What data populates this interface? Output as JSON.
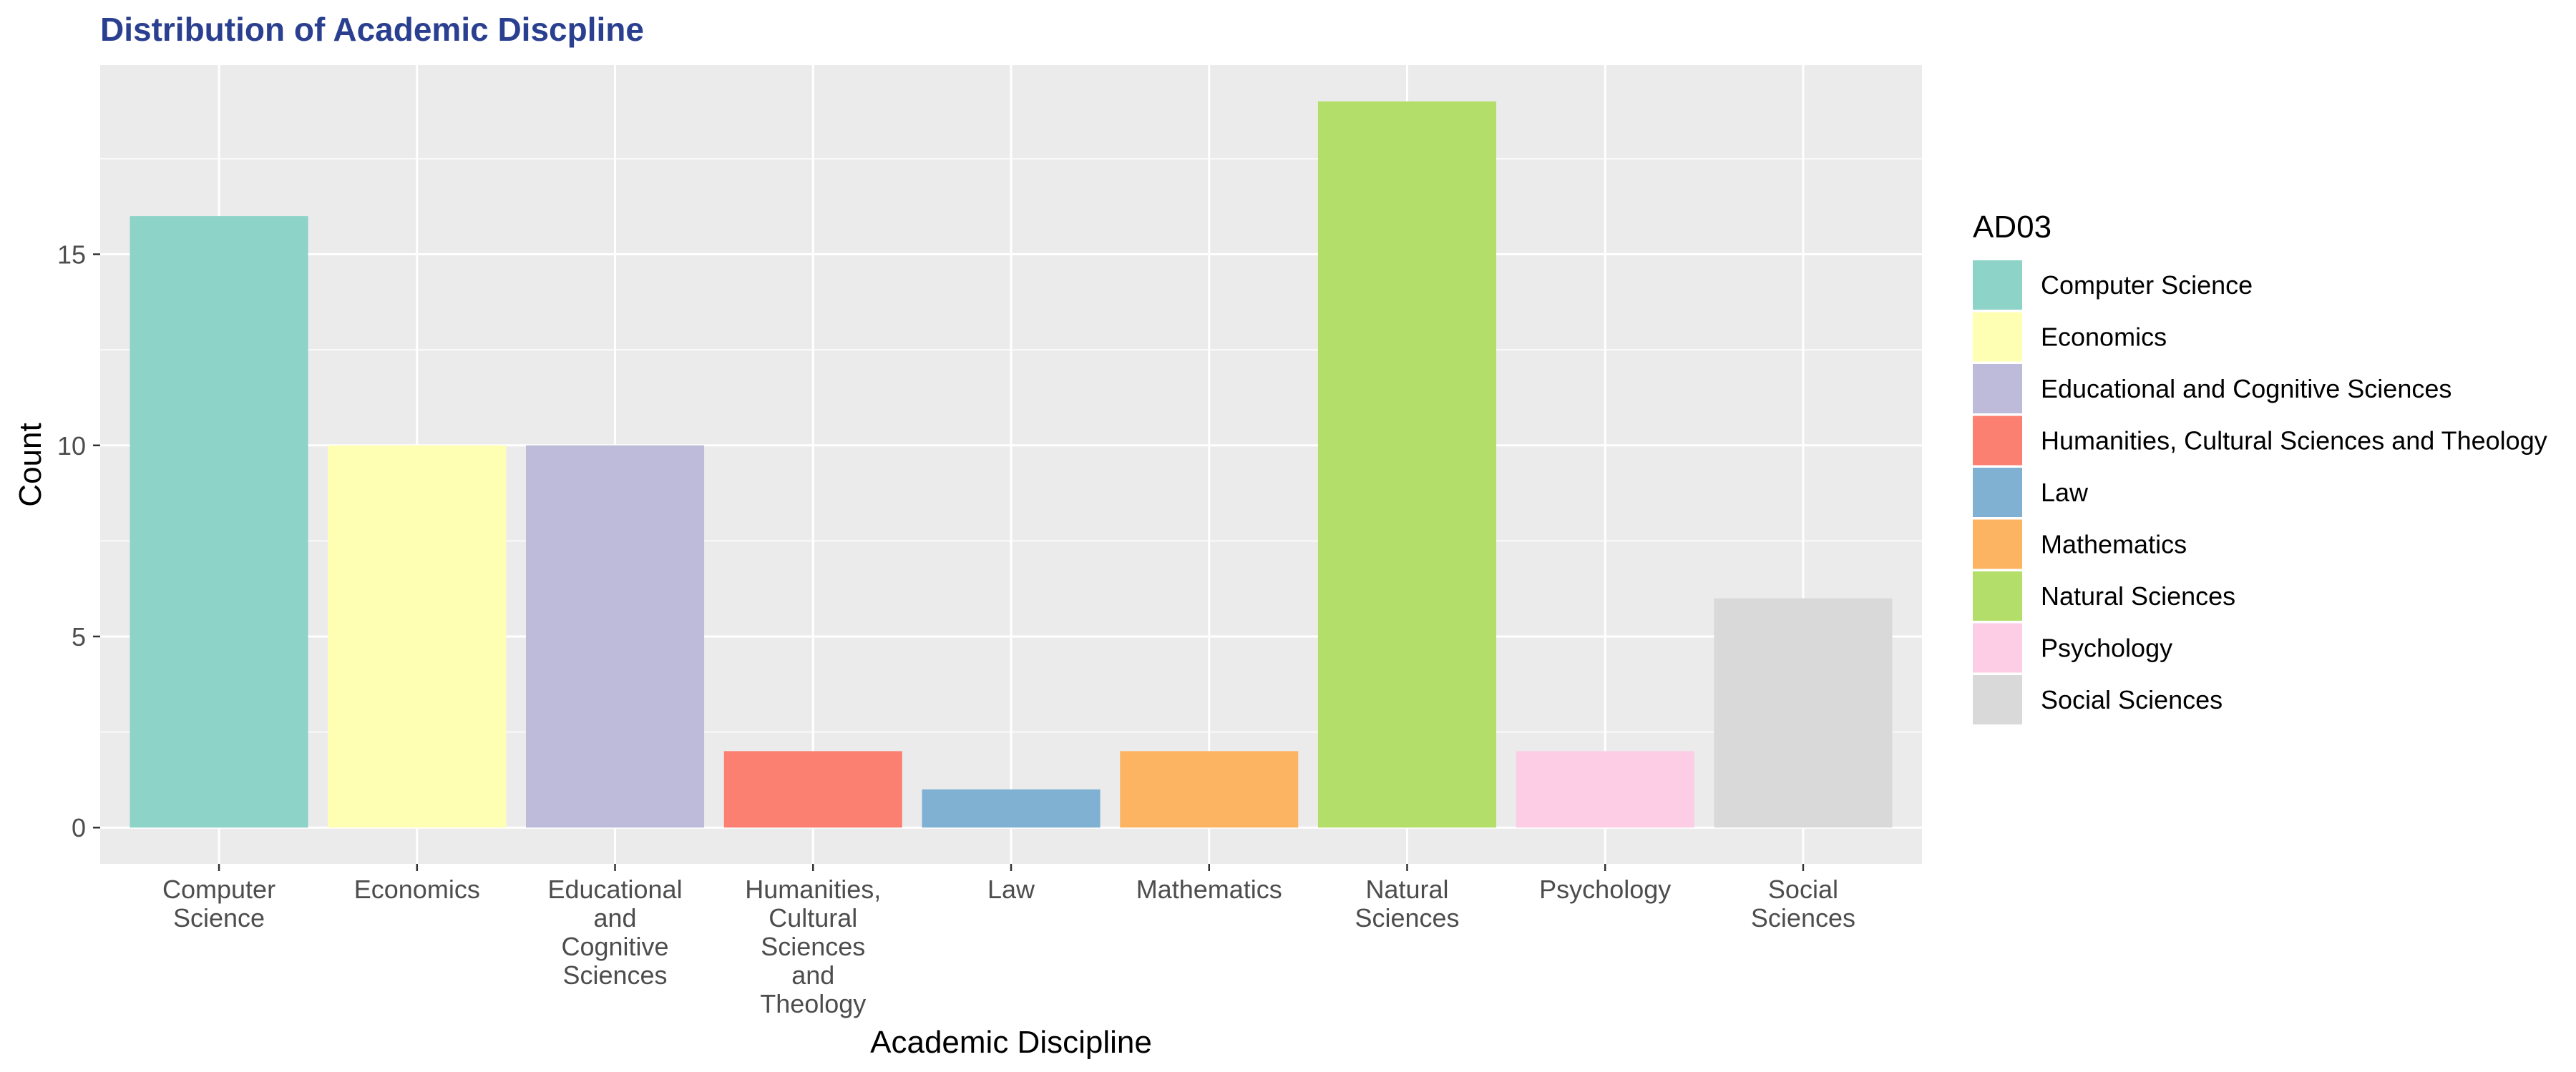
{
  "chart_data": {
    "type": "bar",
    "title": "Distribution of Academic Discpline",
    "xlabel": "Academic Discipline",
    "ylabel": "Count",
    "categories": [
      "Computer Science",
      "Economics",
      "Educational and Cognitive Sciences",
      "Humanities, Cultural Sciences and Theology",
      "Law",
      "Mathematics",
      "Natural Sciences",
      "Psychology",
      "Social Sciences"
    ],
    "tick_label_lines": [
      [
        "Computer",
        "Science"
      ],
      [
        "Economics"
      ],
      [
        "Educational",
        "and",
        "Cognitive",
        "Sciences"
      ],
      [
        "Humanities,",
        "Cultural",
        "Sciences",
        "and",
        "Theology"
      ],
      [
        "Law"
      ],
      [
        "Mathematics"
      ],
      [
        "Natural",
        "Sciences"
      ],
      [
        "Psychology"
      ],
      [
        "Social",
        "Sciences"
      ]
    ],
    "values": [
      16,
      10,
      10,
      2,
      1,
      2,
      19,
      2,
      6
    ],
    "colors": [
      "#8DD3C7",
      "#FFFFB3",
      "#BEBADA",
      "#FB8072",
      "#80B1D3",
      "#FDB462",
      "#B3DE69",
      "#FCCDE5",
      "#D9D9D9"
    ],
    "ylim": [
      -0.95,
      19.95
    ],
    "yticks": [
      0,
      5,
      10,
      15
    ],
    "grid": true,
    "panel_background": "#EBEBEB",
    "legend": {
      "title": "AD03",
      "position": "right",
      "entries": [
        "Computer Science",
        "Economics",
        "Educational and Cognitive Sciences",
        "Humanities, Cultural Sciences and Theology",
        "Law",
        "Mathematics",
        "Natural Sciences",
        "Psychology",
        "Social Sciences"
      ]
    }
  }
}
